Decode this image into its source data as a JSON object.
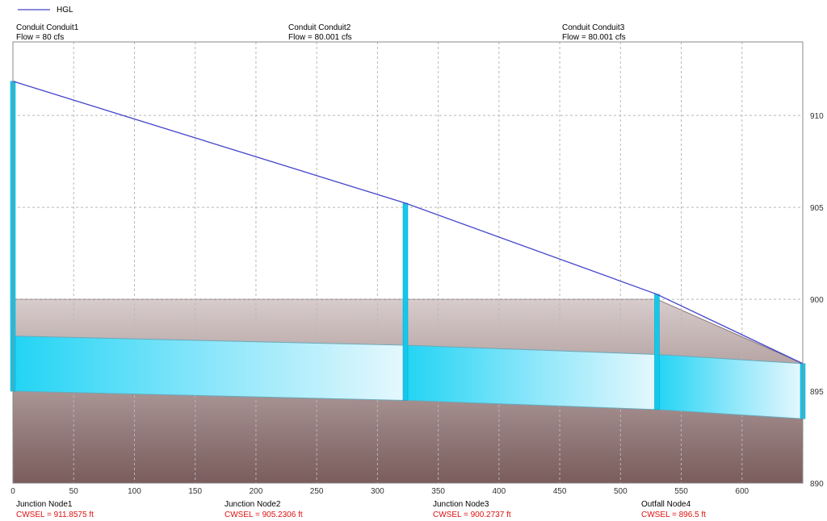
{
  "legend": {
    "label": "HGL",
    "color": "#4444cc"
  },
  "conduits": [
    {
      "name": "Conduit Conduit1",
      "flow": "Flow = 80 cfs"
    },
    {
      "name": "Conduit Conduit2",
      "flow": "Flow = 80.001 cfs"
    },
    {
      "name": "Conduit Conduit3",
      "flow": "Flow = 80.001 cfs"
    }
  ],
  "nodes": [
    {
      "name": "Junction Node1",
      "cwsel": "CWSEL = 911.8575 ft"
    },
    {
      "name": "Junction Node2",
      "cwsel": "CWSEL = 905.2306 ft"
    },
    {
      "name": "Junction Node3",
      "cwsel": "CWSEL = 900.2737 ft"
    },
    {
      "name": "Outfall Node4",
      "cwsel": "CWSEL = 896.5 ft"
    }
  ],
  "chart_data": {
    "type": "line",
    "x_ticks": [
      0,
      50,
      100,
      150,
      200,
      250,
      300,
      350,
      400,
      450,
      500,
      550,
      600
    ],
    "y_ticks": [
      890,
      895,
      900,
      905,
      910
    ],
    "xlim": [
      0,
      650
    ],
    "ylim": [
      890,
      914
    ],
    "grid": true,
    "legend_position": "top-left",
    "colors": {
      "hgl": "#4444cc",
      "pipe": "#22d4f4",
      "manhole": "#14c8ec",
      "ground_top": "#d8cccc",
      "ground_bottom": "#7a5c5c"
    },
    "hgl": {
      "x": [
        0,
        323,
        530,
        654
      ],
      "y": [
        911.86,
        905.23,
        900.27,
        896.5
      ]
    },
    "ground_surface": {
      "x": [
        0,
        323,
        530,
        654
      ],
      "y": [
        900,
        900,
        900,
        896.5
      ]
    },
    "nodes_x": [
      0,
      323,
      530,
      654
    ],
    "node_rims": [
      911.86,
      905.23,
      900.27,
      896.5
    ],
    "node_inverts": [
      895,
      894.5,
      894,
      893.5
    ],
    "pipe_crowns": [
      898,
      897.5,
      897,
      896.5
    ],
    "pipe_inverts": [
      895,
      894.5,
      894,
      893.5
    ]
  }
}
